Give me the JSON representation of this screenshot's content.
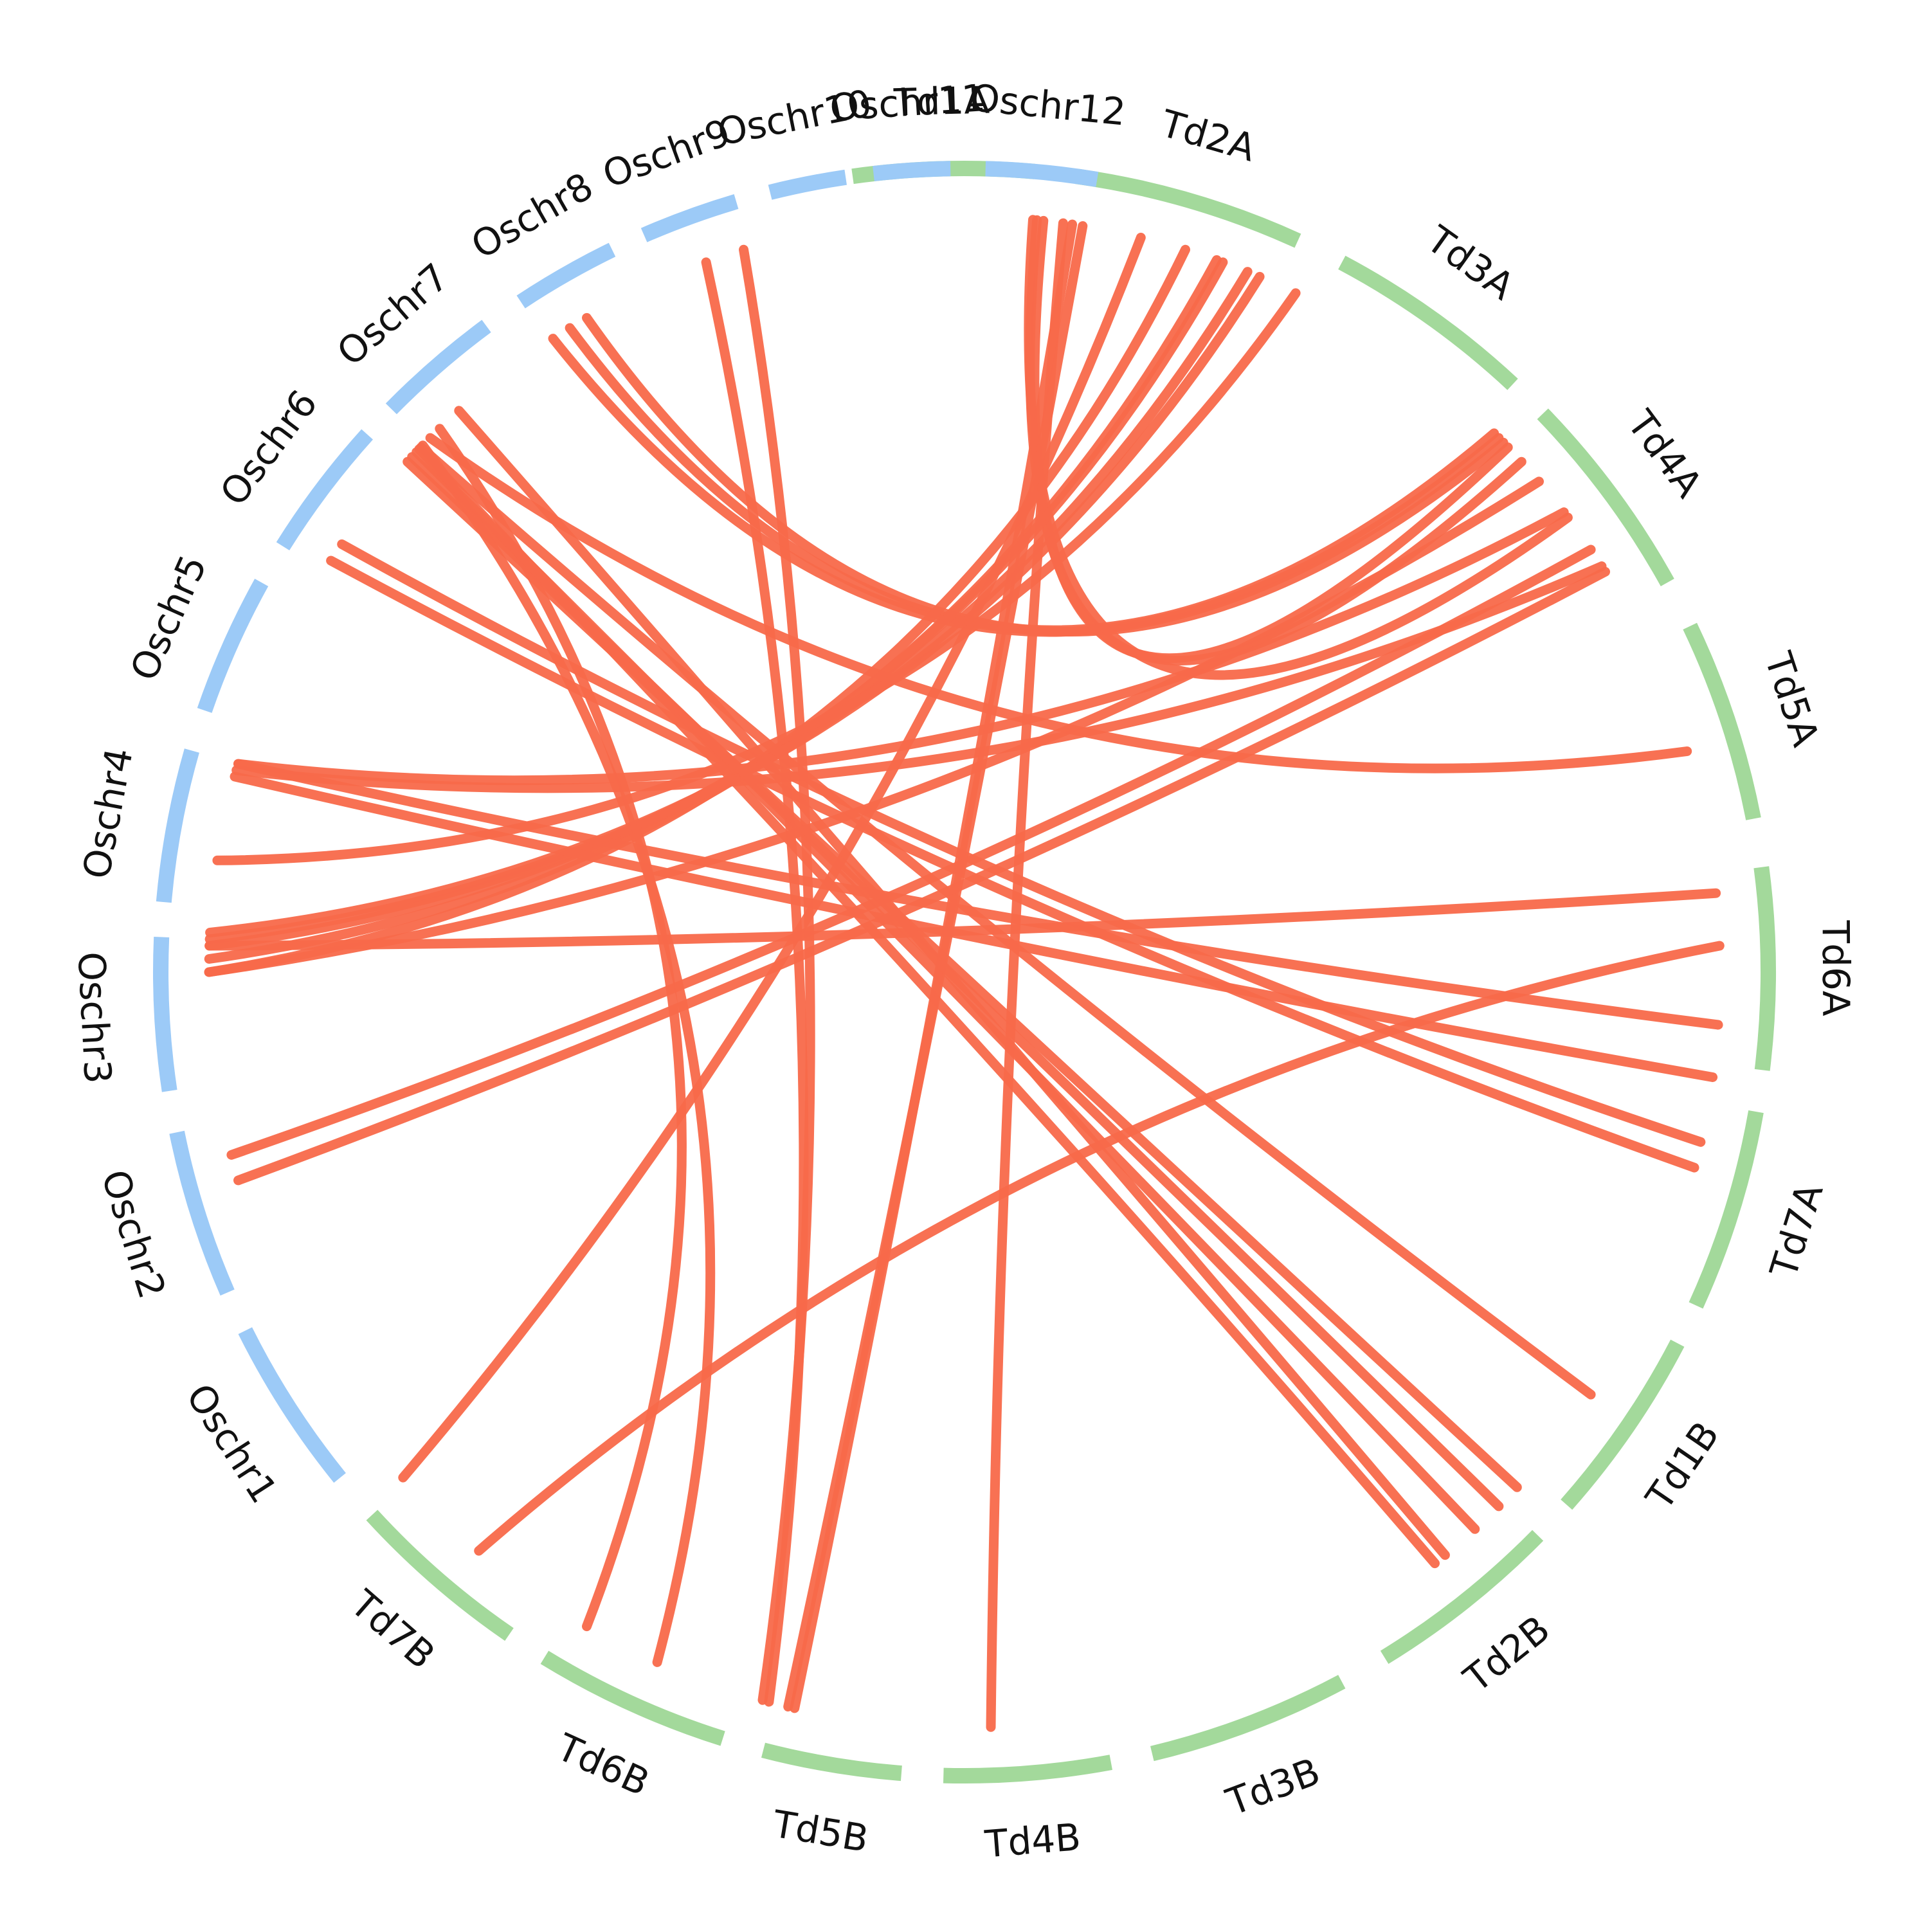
{
  "colors": {
    "rice": "#9ccaf7",
    "wheat": "#a3d99b",
    "link": "#f8694a"
  },
  "chromosomes": [
    {
      "name": "Td1A",
      "group": "wheat",
      "start": -8.0,
      "end": 5.0
    },
    {
      "name": "Td2A",
      "group": "wheat",
      "start": 8.0,
      "end": 24.5
    },
    {
      "name": "Td3A",
      "group": "wheat",
      "start": 28.0,
      "end": 43.0
    },
    {
      "name": "Td4A",
      "group": "wheat",
      "start": 46.0,
      "end": 61.0
    },
    {
      "name": "Td5A",
      "group": "wheat",
      "start": 64.5,
      "end": 79.0
    },
    {
      "name": "Td6A",
      "group": "wheat",
      "start": 82.5,
      "end": 97.0
    },
    {
      "name": "Td7A",
      "group": "wheat",
      "start": 100.0,
      "end": 114.5
    },
    {
      "name": "Td1B",
      "group": "wheat",
      "start": 117.5,
      "end": 131.5
    },
    {
      "name": "Td2B",
      "group": "wheat",
      "start": 134.5,
      "end": 148.5
    },
    {
      "name": "Td3B",
      "group": "wheat",
      "start": 152.0,
      "end": 166.5
    },
    {
      "name": "Td4B",
      "group": "wheat",
      "start": 169.5,
      "end": 181.5
    },
    {
      "name": "Td5B",
      "group": "wheat",
      "start": 184.5,
      "end": 194.5
    },
    {
      "name": "Td6B",
      "group": "wheat",
      "start": 197.5,
      "end": 211.5
    },
    {
      "name": "Td7B",
      "group": "wheat",
      "start": 214.5,
      "end": 227.5
    },
    {
      "name": "Oschr1",
      "group": "rice",
      "start": 231.0,
      "end": 243.5
    },
    {
      "name": "Oschr2",
      "group": "rice",
      "start": 246.5,
      "end": 258.5
    },
    {
      "name": "Oschr3",
      "group": "rice",
      "start": 261.5,
      "end": 272.5
    },
    {
      "name": "Oschr4",
      "group": "rice",
      "start": 275.0,
      "end": 286.0
    },
    {
      "name": "Oschr5",
      "group": "rice",
      "start": 289.0,
      "end": 299.0
    },
    {
      "name": "Oschr6",
      "group": "rice",
      "start": 302.0,
      "end": 312.0
    },
    {
      "name": "Oschr7",
      "group": "rice",
      "start": 314.5,
      "end": 323.5
    },
    {
      "name": "Oschr8",
      "group": "rice",
      "start": 326.5,
      "end": 334.0
    },
    {
      "name": "Oschr9",
      "group": "rice",
      "start": 336.5,
      "end": 343.5
    },
    {
      "name": "Oschr10",
      "group": "rice",
      "start": 346.0,
      "end": 351.5
    },
    {
      "name": "Oschr11",
      "group": "rice",
      "start": 353.5,
      "end": 359.0
    },
    {
      "name": "Oschr12",
      "group": "rice",
      "start": 1.5,
      "end": 9.5
    }
  ],
  "links": [
    {
      "a": 343,
      "b": 195.5
    },
    {
      "a": 340,
      "b": 195
    },
    {
      "a": 330,
      "b": 45.5
    },
    {
      "a": 328.5,
      "b": 44.5
    },
    {
      "a": 327,
      "b": 45
    },
    {
      "a": 6.0,
      "b": 46
    },
    {
      "a": 5.5,
      "b": 47.5
    },
    {
      "a": 5.2,
      "b": 53
    },
    {
      "a": 7.5,
      "b": 178
    },
    {
      "a": 8.2,
      "b": 193
    },
    {
      "a": 13.5,
      "b": 228
    },
    {
      "a": 9.0,
      "b": 193.5
    },
    {
      "a": 17.0,
      "b": 270
    },
    {
      "a": 19.5,
      "b": 271
    },
    {
      "a": 20.0,
      "b": 272
    },
    {
      "a": 22.0,
      "b": 272.5
    },
    {
      "a": 23.0,
      "b": 273
    },
    {
      "a": 26.0,
      "b": 278.5
    },
    {
      "a": 303.0,
      "b": 105
    },
    {
      "a": 304.5,
      "b": 103
    },
    {
      "a": 313.5,
      "b": 137.5
    },
    {
      "a": 313.0,
      "b": 135
    },
    {
      "a": 312.5,
      "b": 133
    },
    {
      "a": 314.0,
      "b": 124
    },
    {
      "a": 318.0,
      "b": 140.5
    },
    {
      "a": 314.2,
      "b": 204
    },
    {
      "a": 316.0,
      "b": 210
    },
    {
      "a": 313.8,
      "b": 141.5
    },
    {
      "a": 49.5,
      "b": 270
    },
    {
      "a": 56.0,
      "b": 256
    },
    {
      "a": 58.0,
      "b": 254
    },
    {
      "a": 52.5,
      "b": 286
    },
    {
      "a": 57.5,
      "b": 285.5
    },
    {
      "a": 73.0,
      "b": 315
    },
    {
      "a": 88.0,
      "b": 220
    },
    {
      "a": 84.0,
      "b": 272
    },
    {
      "a": 98.0,
      "b": 285
    },
    {
      "a": 94.0,
      "b": 286
    }
  ]
}
